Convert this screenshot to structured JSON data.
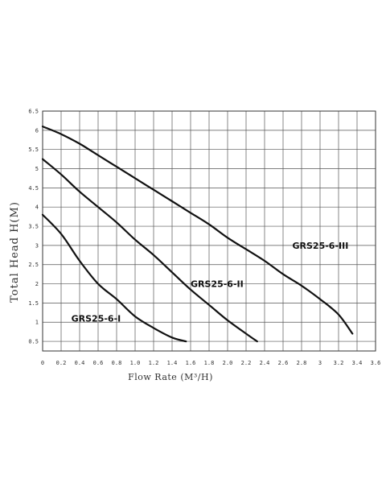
{
  "chart_data": {
    "type": "line",
    "xlabel": "Flow Rate (M³/H)",
    "ylabel": "Total Head H(M)",
    "xlim": [
      0,
      3.6
    ],
    "ylim": [
      0.25,
      6.5
    ],
    "x_ticks": [
      "0",
      "0.2",
      "0.4",
      "0.6",
      "0.8",
      "1.0",
      "1.2",
      "1.4",
      "1.6",
      "1.8",
      "2.0",
      "2.2",
      "2.4",
      "2.6",
      "2.8",
      "3",
      "3.2",
      "3.4",
      "3.6"
    ],
    "y_ticks": [
      "0.5",
      "1",
      "1.5",
      "2",
      "2.5",
      "3",
      "3.5",
      "4",
      "4.5",
      "5",
      "5.5",
      "6",
      "6.5"
    ],
    "grid": true,
    "series": [
      {
        "name": "GRS25-6-I",
        "label_at": [
          0.31,
          1.1
        ],
        "points": [
          [
            0,
            3.8
          ],
          [
            0.2,
            3.3
          ],
          [
            0.4,
            2.6
          ],
          [
            0.6,
            2.0
          ],
          [
            0.8,
            1.6
          ],
          [
            1.0,
            1.15
          ],
          [
            1.2,
            0.85
          ],
          [
            1.4,
            0.6
          ],
          [
            1.55,
            0.5
          ]
        ]
      },
      {
        "name": "GRS25-6-II",
        "label_at": [
          1.6,
          2.0
        ],
        "points": [
          [
            0,
            5.25
          ],
          [
            0.2,
            4.85
          ],
          [
            0.4,
            4.4
          ],
          [
            0.6,
            4.0
          ],
          [
            0.8,
            3.6
          ],
          [
            1.0,
            3.15
          ],
          [
            1.2,
            2.75
          ],
          [
            1.4,
            2.3
          ],
          [
            1.6,
            1.85
          ],
          [
            1.8,
            1.45
          ],
          [
            2.0,
            1.05
          ],
          [
            2.2,
            0.7
          ],
          [
            2.32,
            0.5
          ]
        ]
      },
      {
        "name": "GRS25-6-III",
        "label_at": [
          2.7,
          3.0
        ],
        "points": [
          [
            0,
            6.1
          ],
          [
            0.2,
            5.9
          ],
          [
            0.4,
            5.65
          ],
          [
            0.6,
            5.35
          ],
          [
            0.8,
            5.05
          ],
          [
            1.0,
            4.75
          ],
          [
            1.2,
            4.45
          ],
          [
            1.4,
            4.15
          ],
          [
            1.6,
            3.85
          ],
          [
            1.8,
            3.55
          ],
          [
            2.0,
            3.2
          ],
          [
            2.2,
            2.9
          ],
          [
            2.4,
            2.6
          ],
          [
            2.6,
            2.25
          ],
          [
            2.8,
            1.95
          ],
          [
            3.0,
            1.6
          ],
          [
            3.2,
            1.2
          ],
          [
            3.35,
            0.7
          ]
        ]
      }
    ]
  }
}
